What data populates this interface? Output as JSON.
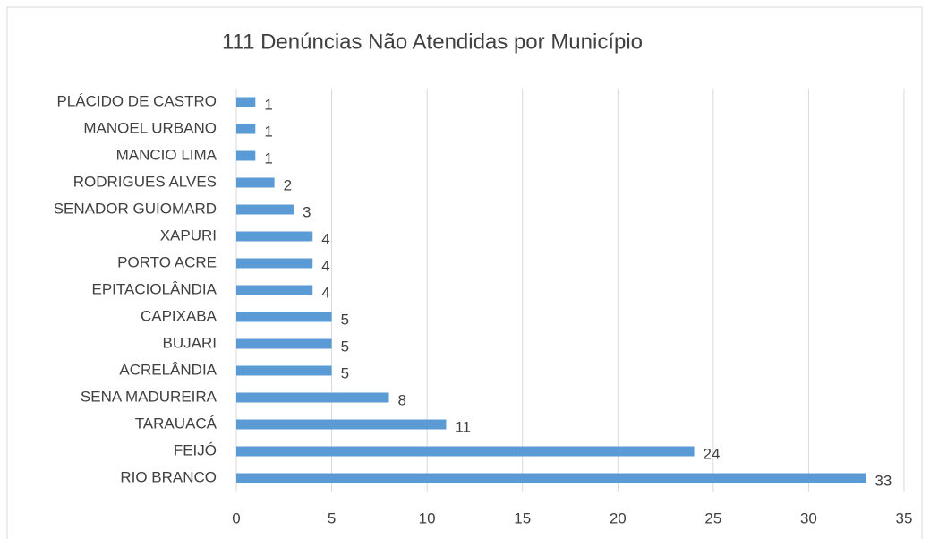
{
  "chart_data": {
    "type": "bar",
    "orientation": "horizontal",
    "title": "111 Denúncias Não Atendidas por Município",
    "categories": [
      "PLÁCIDO DE CASTRO",
      "MANOEL URBANO",
      "MANCIO LIMA",
      "RODRIGUES ALVES",
      "SENADOR GUIOMARD",
      "XAPURI",
      "PORTO ACRE",
      "EPITACIOLÂNDIA",
      "CAPIXABA",
      "BUJARI",
      "ACRELÂNDIA",
      "SENA MADUREIRA",
      "TARAUACÁ",
      "FEIJÓ",
      "RIO BRANCO"
    ],
    "values": [
      1,
      1,
      1,
      2,
      3,
      4,
      4,
      4,
      5,
      5,
      5,
      8,
      11,
      24,
      33
    ],
    "color": "#5b9bd5",
    "xlim": [
      0,
      35
    ],
    "xticks": [
      0,
      5,
      10,
      15,
      20,
      25,
      30,
      35
    ],
    "grid": true
  }
}
